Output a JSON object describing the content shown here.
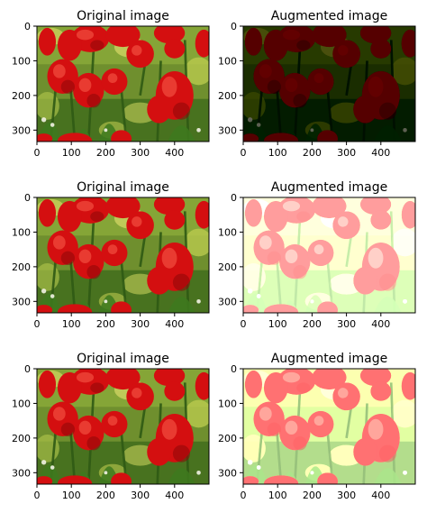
{
  "figure": {
    "background": "#ffffff",
    "image_kind": "red-tulip-field-photo"
  },
  "chart_data": [
    {
      "type": "image",
      "title": "Original image",
      "xlim": [
        0,
        500
      ],
      "ylim": [
        333,
        0
      ],
      "xticks": [
        0,
        100,
        200,
        300,
        400
      ],
      "yticks": [
        0,
        100,
        200,
        300
      ],
      "variant": "original",
      "brightness": 1.0,
      "contrast": 1.0,
      "saturation": 1.0
    },
    {
      "type": "image",
      "title": "Augmented image",
      "xlim": [
        0,
        500
      ],
      "ylim": [
        333,
        0
      ],
      "xticks": [
        0,
        100,
        200,
        300,
        400
      ],
      "yticks": [
        0,
        100,
        200,
        300
      ],
      "variant": "darkened",
      "brightness": 0.45,
      "contrast": 1.3,
      "saturation": 1.0
    },
    {
      "type": "image",
      "title": "Original image",
      "xlim": [
        0,
        500
      ],
      "ylim": [
        333,
        0
      ],
      "xticks": [
        0,
        100,
        200,
        300,
        400
      ],
      "yticks": [
        0,
        100,
        200,
        300
      ],
      "variant": "original",
      "brightness": 1.0,
      "contrast": 1.0,
      "saturation": 1.0
    },
    {
      "type": "image",
      "title": "Augmented image",
      "xlim": [
        0,
        500
      ],
      "ylim": [
        333,
        0
      ],
      "xticks": [
        0,
        100,
        200,
        300,
        400
      ],
      "yticks": [
        0,
        100,
        200,
        300
      ],
      "variant": "brightened",
      "brightness": 2.2,
      "contrast": 0.55,
      "saturation": 0.75
    },
    {
      "type": "image",
      "title": "Original image",
      "xlim": [
        0,
        500
      ],
      "ylim": [
        333,
        0
      ],
      "xticks": [
        0,
        100,
        200,
        300,
        400
      ],
      "yticks": [
        0,
        100,
        200,
        300
      ],
      "variant": "original",
      "brightness": 1.0,
      "contrast": 1.0,
      "saturation": 1.0
    },
    {
      "type": "image",
      "title": "Augmented image",
      "xlim": [
        0,
        500
      ],
      "ylim": [
        333,
        0
      ],
      "xticks": [
        0,
        100,
        200,
        300,
        400
      ],
      "yticks": [
        0,
        100,
        200,
        300
      ],
      "variant": "brightened",
      "brightness": 1.9,
      "contrast": 0.65,
      "saturation": 0.8
    }
  ]
}
